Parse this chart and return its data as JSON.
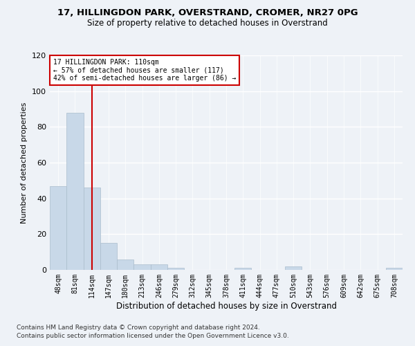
{
  "title1": "17, HILLINGDON PARK, OVERSTRAND, CROMER, NR27 0PG",
  "title2": "Size of property relative to detached houses in Overstrand",
  "xlabel": "Distribution of detached houses by size in Overstrand",
  "ylabel": "Number of detached properties",
  "bar_labels": [
    "48sqm",
    "81sqm",
    "114sqm",
    "147sqm",
    "180sqm",
    "213sqm",
    "246sqm",
    "279sqm",
    "312sqm",
    "345sqm",
    "378sqm",
    "411sqm",
    "444sqm",
    "477sqm",
    "510sqm",
    "543sqm",
    "576sqm",
    "609sqm",
    "642sqm",
    "675sqm",
    "708sqm"
  ],
  "bar_values": [
    47,
    88,
    46,
    15,
    6,
    3,
    3,
    1,
    0,
    0,
    0,
    1,
    0,
    0,
    2,
    0,
    0,
    0,
    0,
    0,
    1
  ],
  "bar_color": "#c8d8e8",
  "bar_edgecolor": "#aabccc",
  "ylim": [
    0,
    120
  ],
  "yticks": [
    0,
    20,
    40,
    60,
    80,
    100,
    120
  ],
  "property_bar_index": 2,
  "vline_color": "#cc0000",
  "annotation_text": "17 HILLINGDON PARK: 110sqm\n← 57% of detached houses are smaller (117)\n42% of semi-detached houses are larger (86) →",
  "annotation_box_color": "#ffffff",
  "annotation_box_edgecolor": "#cc0000",
  "footer1": "Contains HM Land Registry data © Crown copyright and database right 2024.",
  "footer2": "Contains public sector information licensed under the Open Government Licence v3.0.",
  "bg_color": "#eef2f7",
  "plot_bg_color": "#eef2f7",
  "grid_color": "#ffffff",
  "title_fontsize": 9.5,
  "subtitle_fontsize": 8.5
}
